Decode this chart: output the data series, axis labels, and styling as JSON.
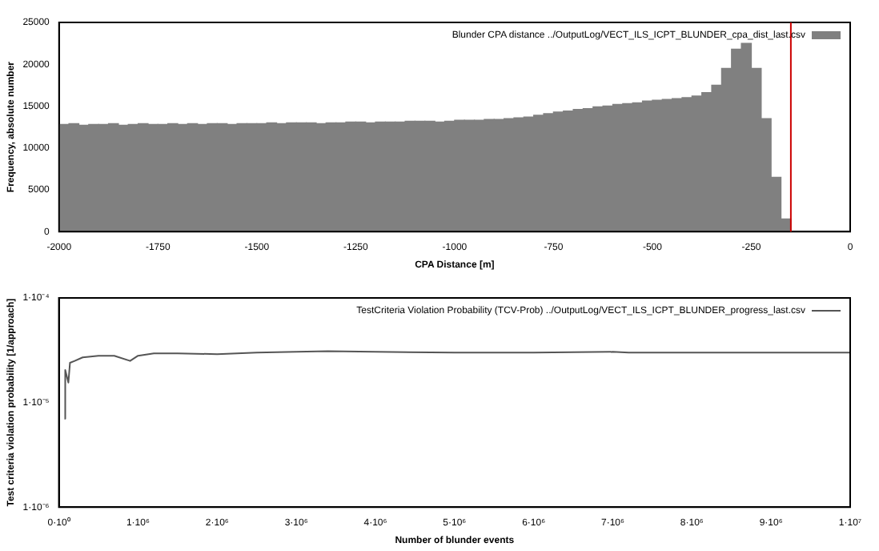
{
  "chart_data": [
    {
      "type": "histogram",
      "xlabel": "CPA Distance [m]",
      "ylabel": "Frequency, absolute number",
      "legend": "top right",
      "bins": [
        -2000,
        -1975,
        -1950,
        -1925,
        -1900,
        -1875,
        -1850,
        -1825,
        -1800,
        -1775,
        -1750,
        -1725,
        -1700,
        -1675,
        -1650,
        -1625,
        -1600,
        -1575,
        -1550,
        -1525,
        -1500,
        -1475,
        -1450,
        -1425,
        -1400,
        -1375,
        -1350,
        -1325,
        -1300,
        -1275,
        -1250,
        -1225,
        -1200,
        -1175,
        -1150,
        -1125,
        -1100,
        -1075,
        -1050,
        -1025,
        -1000,
        -975,
        -950,
        -925,
        -900,
        -875,
        -850,
        -825,
        -800,
        -775,
        -750,
        -725,
        -700,
        -675,
        -650,
        -625,
        -600,
        -575,
        -550,
        -525,
        -500,
        -475,
        -450,
        -425,
        -400,
        -375,
        -350,
        -325,
        -300,
        -275,
        -250,
        -225,
        -200,
        -175,
        -150
      ],
      "series": [
        {
          "name": "Blunder CPA distance ../OutputLog/VECT_ILS_ICPT_BLUNDER_cpa_dist_last.csv",
          "color": "#808080",
          "values": [
            12800,
            12900,
            12700,
            12800,
            12800,
            12900,
            12700,
            12800,
            12900,
            12800,
            12800,
            12900,
            12800,
            12900,
            12800,
            12900,
            12900,
            12800,
            12900,
            12900,
            12900,
            13000,
            12900,
            13000,
            13000,
            13000,
            12900,
            13000,
            13000,
            13100,
            13100,
            13000,
            13100,
            13100,
            13100,
            13200,
            13200,
            13200,
            13100,
            13200,
            13300,
            13300,
            13300,
            13400,
            13400,
            13500,
            13600,
            13700,
            13900,
            14100,
            14300,
            14400,
            14600,
            14700,
            14900,
            15000,
            15200,
            15300,
            15400,
            15600,
            15700,
            15800,
            15900,
            16000,
            16200,
            16600,
            17500,
            19500,
            21800,
            22500,
            19500,
            13500,
            6500,
            1500
          ]
        }
      ],
      "xlim": [
        -2000,
        0
      ],
      "xticks": [
        -2000,
        -1750,
        -1500,
        -1250,
        -1000,
        -750,
        -500,
        -250,
        0
      ],
      "ylim": [
        0,
        25000
      ],
      "yticks": [
        0,
        5000,
        10000,
        15000,
        20000,
        25000
      ],
      "ref_lines": [
        {
          "axis": "x",
          "value": -150,
          "color": "#cc0000"
        }
      ]
    },
    {
      "type": "line",
      "xlabel": "Number of blunder events",
      "ylabel": "Test criteria violation probability [1/approach]",
      "legend": "top right",
      "log": "y",
      "marker": "none",
      "series": [
        {
          "name": "TestCriteria Violation Probability (TCV-Prob) ../OutputLog/VECT_ILS_ICPT_BLUNDER_progress_last.csv",
          "color": "#555555",
          "x": [
            70000,
            80000,
            120000,
            140000,
            200000,
            300000,
            500000,
            700000,
            900000,
            1000000,
            1200000,
            1500000,
            2000000,
            2500000,
            3000000,
            3400000,
            4000000,
            5000000,
            6000000,
            7000000,
            7200000,
            8000000,
            10000000
          ],
          "values": [
            7e-06,
            2.05e-05,
            1.55e-05,
            2.4e-05,
            2.5e-05,
            2.7e-05,
            2.8e-05,
            2.8e-05,
            2.5e-05,
            2.8e-05,
            2.95e-05,
            2.95e-05,
            2.9e-05,
            3e-05,
            3.05e-05,
            3.1e-05,
            3.05e-05,
            3e-05,
            3e-05,
            3.05e-05,
            3e-05,
            3e-05,
            3e-05
          ]
        }
      ],
      "xlim": [
        0,
        10000000
      ],
      "xticks": [
        {
          "value": 0,
          "label": "0·10⁰"
        },
        {
          "value": 1000000,
          "label": "1·10⁶"
        },
        {
          "value": 2000000,
          "label": "2·10⁶"
        },
        {
          "value": 3000000,
          "label": "3·10⁶"
        },
        {
          "value": 4000000,
          "label": "4·10⁶"
        },
        {
          "value": 5000000,
          "label": "5·10⁶"
        },
        {
          "value": 6000000,
          "label": "6·10⁶"
        },
        {
          "value": 7000000,
          "label": "7·10⁶"
        },
        {
          "value": 8000000,
          "label": "8·10⁶"
        },
        {
          "value": 9000000,
          "label": "9·10⁶"
        },
        {
          "value": 10000000,
          "label": "1·10⁷"
        }
      ],
      "ylim": [
        1e-06,
        0.0001
      ],
      "yticks": [
        {
          "value": 1e-06,
          "label": "1·10⁻⁶"
        },
        {
          "value": 1e-05,
          "label": "1·10⁻⁵"
        },
        {
          "value": 0.0001,
          "label": "1·10⁻⁴"
        }
      ]
    }
  ]
}
